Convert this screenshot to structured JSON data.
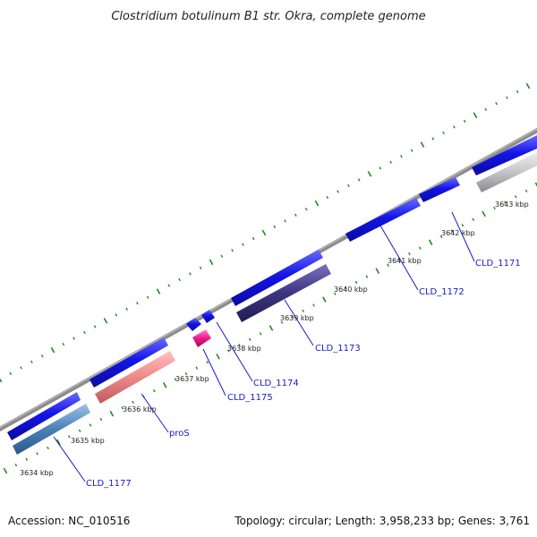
{
  "title": "Clostridium botulinum B1 str. Okra, complete genome",
  "accession": "Accession: NC_010516",
  "summary": "Topology: circular; Length: 3,958,233 bp; Genes: 3,761",
  "colors": {
    "backbone": "#8c8c8c",
    "dots": "#1f8a1f",
    "label": "#1a1ac8"
  },
  "scale": {
    "unit": "kbp",
    "ticks": [
      "3634 kbp",
      "3635 kbp",
      "3636 kbp",
      "3637 kbp",
      "3638 kbp",
      "3639 kbp",
      "3640 kbp",
      "3641 kbp",
      "3642 kbp",
      "3643 kbp"
    ]
  },
  "genes": [
    {
      "name": "CLD_1177",
      "strand": "minus",
      "color": "#4a7fb8"
    },
    {
      "name": "proS",
      "strand": "minus",
      "color": "#f08888"
    },
    {
      "name": "CLD_1175",
      "strand": "minus",
      "color": "#ee1a8a"
    },
    {
      "name": "CLD_1174",
      "strand": "plus",
      "color": "#1414e8"
    },
    {
      "name": "CLD_1173",
      "strand": "minus",
      "color": "#3d3580"
    },
    {
      "name": "CLD_1172",
      "strand": "plus",
      "color": "#1414e8"
    },
    {
      "name": "CLD_1171",
      "strand": "minus",
      "color": "#c4c4c8"
    }
  ],
  "plus_strand_color": "#1414e8"
}
